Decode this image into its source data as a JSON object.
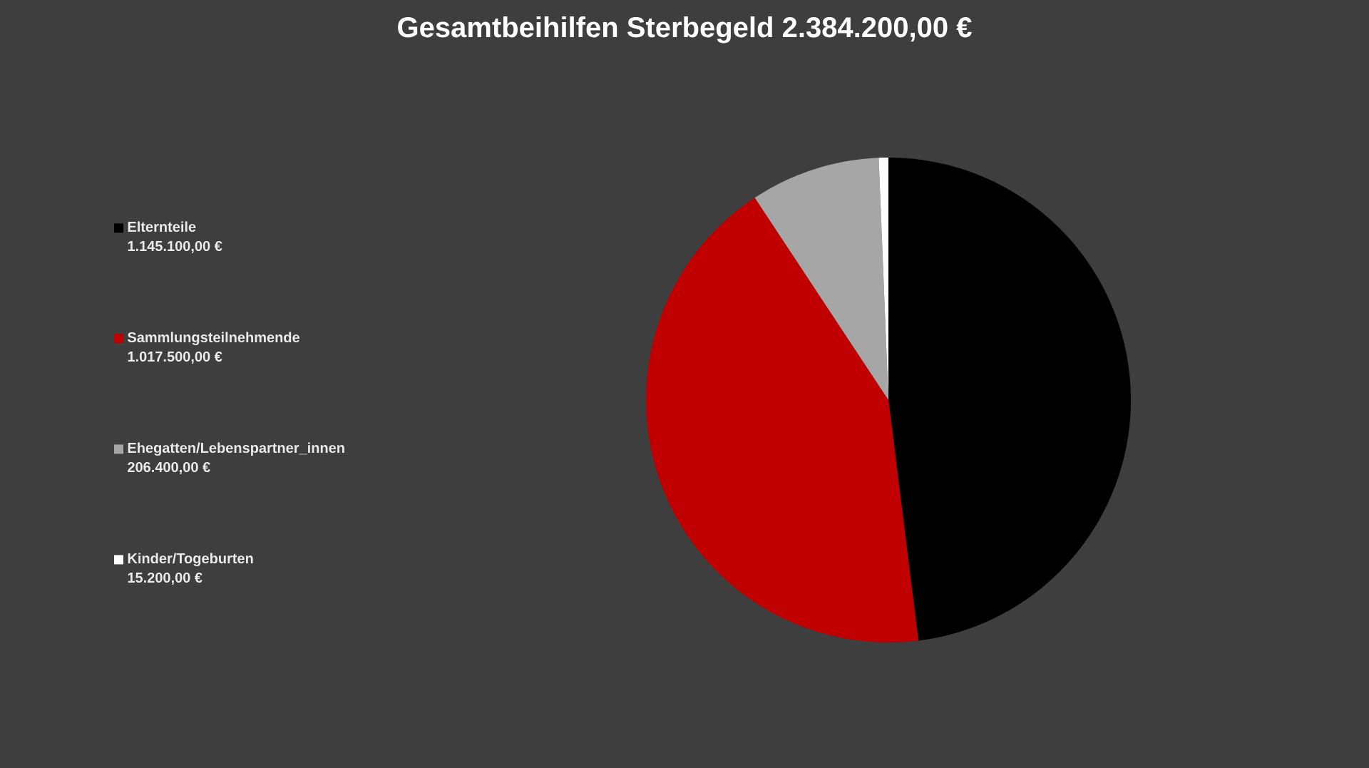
{
  "chart_data": {
    "type": "pie",
    "title": "Gesamtbeihilfen Sterbegeld 2.384.200,00 €",
    "categories": [
      "Elternteile",
      "Sammlungsteilnehmende",
      "Ehegatten/Lebenspartner_innen",
      "Kinder/Togeburten"
    ],
    "values": [
      1145100,
      1017500,
      206400,
      15200
    ],
    "value_labels": [
      "1.145.100,00 €",
      "1.017.500,00 €",
      "206.400,00 €",
      "15.200,00 €"
    ],
    "colors": [
      "#000000",
      "#c00000",
      "#a6a6a6",
      "#ffffff"
    ],
    "legend": "left"
  }
}
